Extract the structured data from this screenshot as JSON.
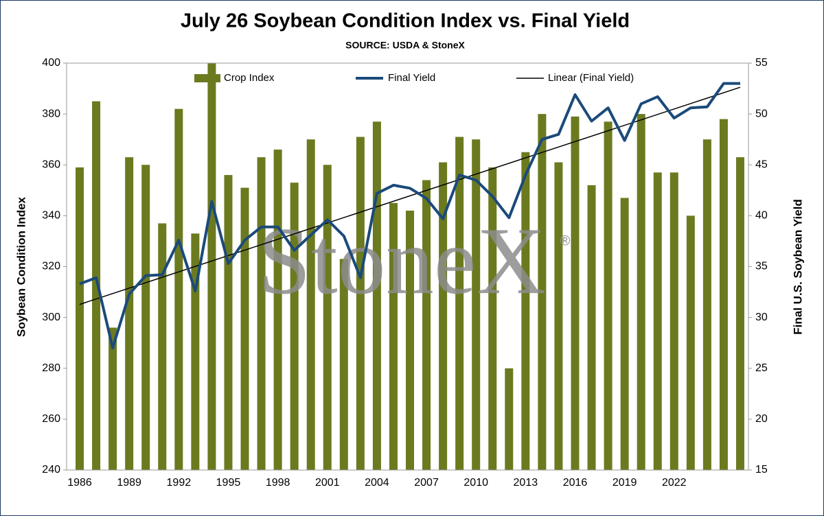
{
  "chart_data": {
    "type": "bar-line",
    "title": "July 26 Soybean Condition Index vs. Final Yield",
    "subtitle": "SOURCE: USDA & StoneX",
    "watermark": "StoneX",
    "watermark_mark": "®",
    "y_label": "Soybean Condition Index",
    "y2_label": "Final U.S. Soybean Yield",
    "categories": [
      "1986",
      null,
      null,
      "1989",
      null,
      null,
      "1992",
      null,
      null,
      "1995",
      null,
      null,
      "1998",
      null,
      null,
      "2001",
      null,
      null,
      "2004",
      null,
      null,
      "2007",
      null,
      null,
      "2010",
      null,
      null,
      "2013",
      null,
      null,
      "2016",
      null,
      null,
      "2019",
      null,
      null,
      "2022",
      null,
      null,
      null,
      null
    ],
    "series": [
      {
        "name": "Crop Index",
        "color": "#6b7a1f",
        "kind": "bar",
        "values": [
          359,
          385,
          296,
          363,
          360,
          337,
          382,
          333,
          400,
          356,
          351,
          363,
          366,
          353,
          370,
          360,
          323,
          371,
          377,
          345,
          342,
          354,
          361,
          371,
          370,
          359,
          280,
          365,
          380,
          361,
          379,
          352,
          377,
          347,
          380,
          357,
          357,
          340,
          370,
          378,
          363
        ]
      },
      {
        "name": "Final Yield",
        "color": "#1b4a7a",
        "kind": "line",
        "axis": "y2",
        "values": [
          33.3,
          33.9,
          27.0,
          32.3,
          34.1,
          34.2,
          37.6,
          32.6,
          41.4,
          35.3,
          37.6,
          38.9,
          38.9,
          36.6,
          38.1,
          39.6,
          38.0,
          33.9,
          42.2,
          43.0,
          42.7,
          41.7,
          39.7,
          44.0,
          43.5,
          41.9,
          39.8,
          44.0,
          47.5,
          48.0,
          51.9,
          49.3,
          50.6,
          47.4,
          51.0,
          51.7,
          49.6,
          50.6,
          50.7,
          53.0,
          53.0
        ]
      }
    ],
    "trendline": {
      "name": "Linear (Final Yield)",
      "color": "#000000",
      "of": 1
    },
    "ylim": [
      240,
      400
    ],
    "yticks": [
      240,
      260,
      280,
      300,
      320,
      340,
      360,
      380,
      400
    ],
    "y2lim": [
      15,
      55
    ],
    "y2ticks": [
      15,
      20,
      25,
      30,
      35,
      40,
      45,
      50,
      55
    ]
  }
}
